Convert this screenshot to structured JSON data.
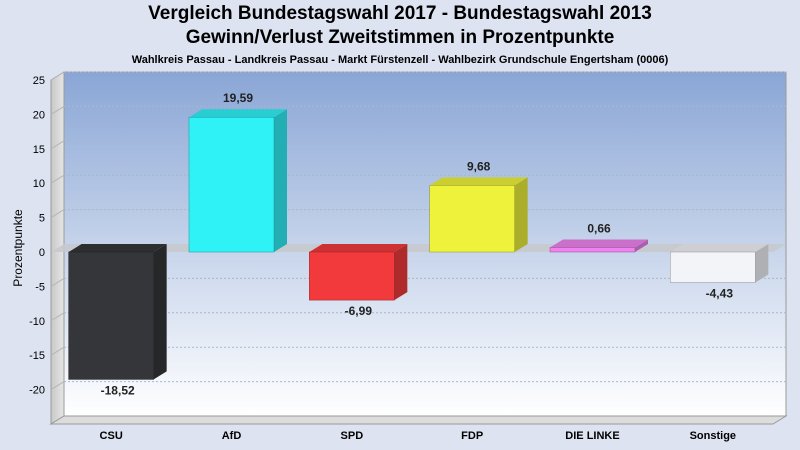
{
  "chart_data": {
    "type": "bar",
    "title": "Vergleich Bundestagswahl 2017 - Bundestagswahl 2013",
    "title_line2": "Gewinn/Verlust Zweitstimmen in Prozentpunkte",
    "subtitle": "Wahlkreis Passau - Landkreis Passau - Markt Fürstenzell - Wahlbezirk Grundschule Engertsham (0006)",
    "xlabel": "",
    "ylabel": "Prozentpunkte",
    "ylim": [
      -25,
      25
    ],
    "yticks": [
      25,
      20,
      15,
      10,
      5,
      0,
      -5,
      -10,
      -15,
      -20
    ],
    "grid": true,
    "categories": [
      "CSU",
      "AfD",
      "SPD",
      "FDP",
      "DIE LINKE",
      "Sonstige"
    ],
    "values": [
      -18.52,
      19.59,
      -6.99,
      9.68,
      0.66,
      -4.43
    ],
    "value_labels": [
      "-18,52",
      "19,59",
      "-6,99",
      "9,68",
      "0,66",
      "-4,43"
    ],
    "colors": [
      "#353639",
      "#2ff2f7",
      "#f23a3c",
      "#eef23a",
      "#ee82ee",
      "#f3f4f8"
    ]
  }
}
